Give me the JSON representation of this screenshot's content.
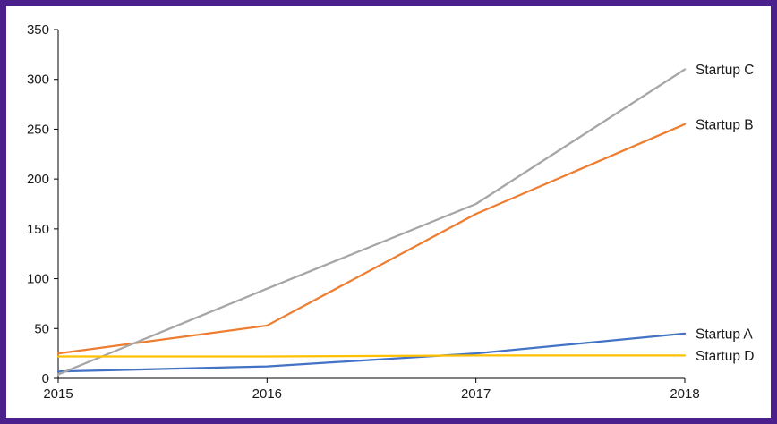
{
  "frame": {
    "border_color": "#4B1F8C",
    "background_color": "#ffffff"
  },
  "chart_data": {
    "type": "line",
    "title": "",
    "xlabel": "",
    "ylabel": "",
    "x": [
      "2015",
      "2016",
      "2017",
      "2018"
    ],
    "series": [
      {
        "name": "Startup A",
        "values": [
          7,
          12,
          25,
          45
        ],
        "color": "#4472C4"
      },
      {
        "name": "Startup B",
        "values": [
          25,
          53,
          165,
          255
        ],
        "color": "#ED7D31"
      },
      {
        "name": "Startup C",
        "values": [
          4,
          90,
          175,
          310
        ],
        "color": "#A6A6A6"
      },
      {
        "name": "Startup D",
        "values": [
          22,
          22,
          23,
          23
        ],
        "color": "#FFC000"
      }
    ],
    "ylim": [
      0,
      350
    ],
    "ytick_step": 50,
    "yticks": [
      "0",
      "50",
      "100",
      "150",
      "200",
      "250",
      "300",
      "350"
    ],
    "grid": false,
    "legend_position": "end-of-line labels",
    "axis_color": "#000000"
  }
}
